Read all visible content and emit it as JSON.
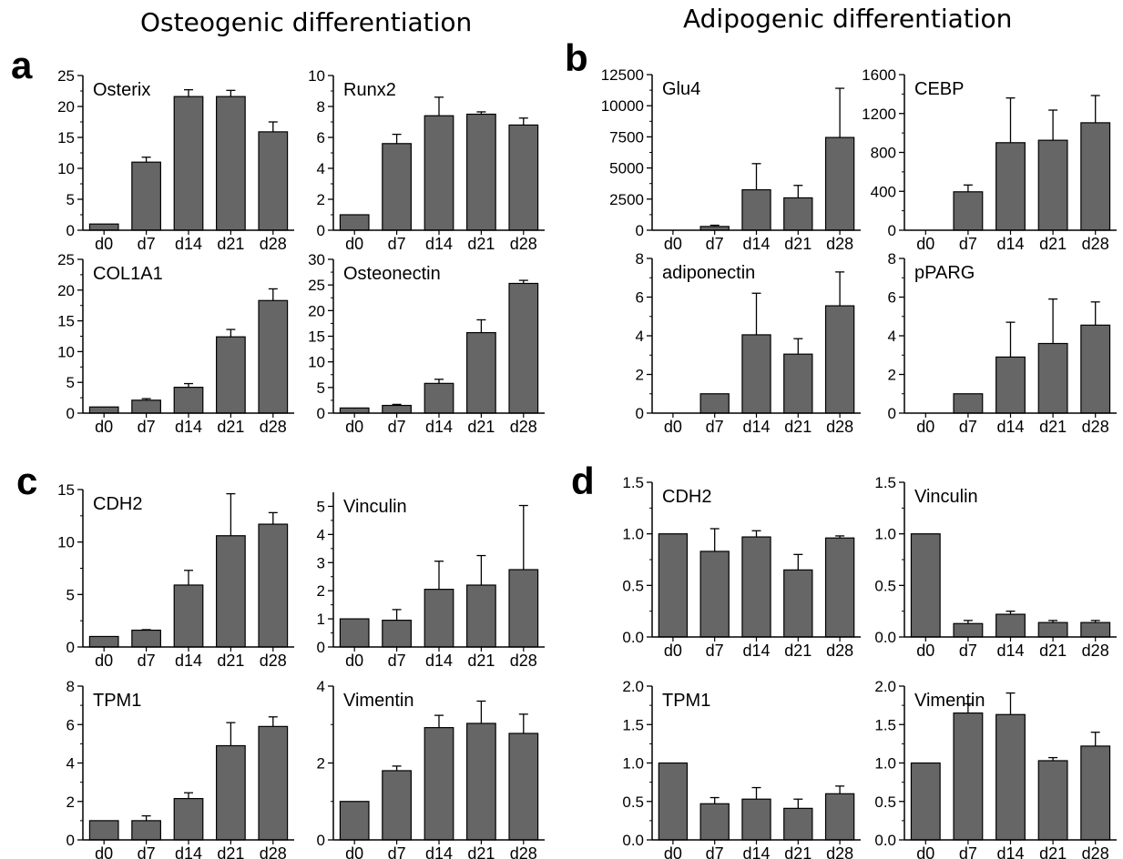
{
  "headings": {
    "osteogenic": "Osteogenic differentiation",
    "adipogenic": "Adipogenic differentiation"
  },
  "panel_labels": {
    "a": "a",
    "b": "b",
    "c": "c",
    "d": "d"
  },
  "colors": {
    "bar": "#666666",
    "axis": "#000000"
  },
  "chart_data": [
    {
      "type": "bar",
      "title": "Osterix",
      "categories": [
        "d0",
        "d7",
        "d14",
        "d21",
        "d28"
      ],
      "values": [
        1,
        11,
        21.6,
        21.6,
        15.9
      ],
      "errors": [
        0,
        0.8,
        1.1,
        1.0,
        1.6
      ],
      "ylim": [
        0,
        25
      ],
      "yticks": [
        0,
        5,
        10,
        15,
        20,
        25
      ],
      "yticklabels": [
        "0",
        "5",
        "10",
        "15",
        "20",
        "25"
      ]
    },
    {
      "type": "bar",
      "title": "Runx2",
      "categories": [
        "d0",
        "d7",
        "d14",
        "d21",
        "d28"
      ],
      "values": [
        1,
        5.6,
        7.4,
        7.5,
        6.8
      ],
      "errors": [
        0,
        0.6,
        1.2,
        0.15,
        0.45
      ],
      "ylim": [
        0,
        10
      ],
      "yticks": [
        0,
        2,
        4,
        6,
        8,
        10
      ],
      "yticklabels": [
        "0",
        "2",
        "4",
        "6",
        "8",
        "10"
      ]
    },
    {
      "type": "bar",
      "title": "COL1A1",
      "categories": [
        "d0",
        "d7",
        "d14",
        "d21",
        "d28"
      ],
      "values": [
        1,
        2.1,
        4.2,
        12.4,
        18.3
      ],
      "errors": [
        0,
        0.25,
        0.6,
        1.2,
        1.9
      ],
      "ylim": [
        0,
        25
      ],
      "yticks": [
        0,
        5,
        10,
        15,
        20,
        25
      ],
      "yticklabels": [
        "0",
        "5",
        "10",
        "15",
        "20",
        "25"
      ]
    },
    {
      "type": "bar",
      "title": "Osteonectin",
      "categories": [
        "d0",
        "d7",
        "d14",
        "d21",
        "d28"
      ],
      "values": [
        1,
        1.5,
        5.8,
        15.7,
        25.3
      ],
      "errors": [
        0,
        0.2,
        0.8,
        2.5,
        0.6
      ],
      "ylim": [
        0,
        30
      ],
      "yticks": [
        0,
        5,
        10,
        15,
        20,
        25,
        30
      ],
      "yticklabels": [
        "0",
        "5",
        "10",
        "15",
        "20",
        "25",
        "30"
      ]
    },
    {
      "type": "bar",
      "title": "Glu4",
      "categories": [
        "d0",
        "d7",
        "d14",
        "d21",
        "d28"
      ],
      "values": [
        0,
        300,
        3250,
        2600,
        7450
      ],
      "errors": [
        0,
        100,
        2100,
        1000,
        3950
      ],
      "ylim": [
        0,
        12500
      ],
      "yticks": [
        0,
        2500,
        5000,
        7500,
        10000,
        12500
      ],
      "yticklabels": [
        "0",
        "2500",
        "5000",
        "7500",
        "10000",
        "12500"
      ]
    },
    {
      "type": "bar",
      "title": "CEBP",
      "categories": [
        "d0",
        "d7",
        "d14",
        "d21",
        "d28"
      ],
      "values": [
        0,
        395,
        900,
        925,
        1105
      ],
      "errors": [
        0,
        70,
        460,
        310,
        280
      ],
      "ylim": [
        0,
        1600
      ],
      "yticks": [
        0,
        400,
        800,
        1200,
        1600
      ],
      "yticklabels": [
        "0",
        "400",
        "800",
        "1200",
        "1600"
      ]
    },
    {
      "type": "bar",
      "title": "adiponectin",
      "categories": [
        "d0",
        "d7",
        "d14",
        "d21",
        "d28"
      ],
      "values": [
        0,
        1,
        4.05,
        3.05,
        5.55
      ],
      "errors": [
        0,
        0,
        2.15,
        0.8,
        1.75
      ],
      "ylim": [
        0,
        8
      ],
      "yticks": [
        0,
        2,
        4,
        6,
        8
      ],
      "yticklabels": [
        "0",
        "2",
        "4",
        "6",
        "8"
      ]
    },
    {
      "type": "bar",
      "title": "pPARG",
      "categories": [
        "d0",
        "d7",
        "d14",
        "d21",
        "d28"
      ],
      "values": [
        0,
        1,
        2.9,
        3.6,
        4.55
      ],
      "errors": [
        0,
        0,
        1.8,
        2.3,
        1.2
      ],
      "ylim": [
        0,
        8
      ],
      "yticks": [
        0,
        2,
        4,
        6,
        8
      ],
      "yticklabels": [
        "0",
        "2",
        "4",
        "6",
        "8"
      ]
    },
    {
      "type": "bar",
      "title": "CDH2",
      "categories": [
        "d0",
        "d7",
        "d14",
        "d21",
        "d28"
      ],
      "values": [
        1,
        1.6,
        5.9,
        10.6,
        11.7
      ],
      "errors": [
        0,
        0.05,
        1.4,
        4.0,
        1.1
      ],
      "ylim": [
        0,
        15
      ],
      "yticks": [
        0,
        5,
        10,
        15
      ],
      "yticklabels": [
        "0",
        "5",
        "10",
        "15"
      ]
    },
    {
      "type": "bar",
      "title": "Vinculin",
      "categories": [
        "d0",
        "d7",
        "d14",
        "d21",
        "d28"
      ],
      "values": [
        1,
        0.95,
        2.05,
        2.2,
        2.75
      ],
      "errors": [
        0,
        0.38,
        1.0,
        1.05,
        2.28
      ],
      "ylim": [
        0,
        5.5
      ],
      "yticks": [
        0,
        1,
        2,
        3,
        4,
        5
      ],
      "yticklabels": [
        "0",
        "1",
        "2",
        "3",
        "4",
        "5"
      ]
    },
    {
      "type": "bar",
      "title": "TPM1",
      "categories": [
        "d0",
        "d7",
        "d14",
        "d21",
        "d28"
      ],
      "values": [
        1,
        1,
        2.15,
        4.9,
        5.9
      ],
      "errors": [
        0,
        0.25,
        0.3,
        1.2,
        0.5
      ],
      "ylim": [
        0,
        8
      ],
      "yticks": [
        0,
        2,
        4,
        6,
        8
      ],
      "yticklabels": [
        "0",
        "2",
        "4",
        "6",
        "8"
      ]
    },
    {
      "type": "bar",
      "title": "Vimentin",
      "categories": [
        "d0",
        "d7",
        "d14",
        "d21",
        "d28"
      ],
      "values": [
        1,
        1.8,
        2.92,
        3.03,
        2.77
      ],
      "errors": [
        0,
        0.12,
        0.32,
        0.58,
        0.5
      ],
      "ylim": [
        0,
        4
      ],
      "yticks": [
        0,
        2,
        4
      ],
      "yticklabels": [
        "0",
        "2",
        "4"
      ]
    },
    {
      "type": "bar",
      "title": "CDH2",
      "categories": [
        "d0",
        "d7",
        "d14",
        "d21",
        "d28"
      ],
      "values": [
        1,
        0.83,
        0.97,
        0.65,
        0.96
      ],
      "errors": [
        0,
        0.22,
        0.06,
        0.15,
        0.02
      ],
      "ylim": [
        0,
        1.5
      ],
      "yticks": [
        0,
        0.5,
        1,
        1.5
      ],
      "yticklabels": [
        "0.0",
        "0.5",
        "1.0",
        "1.5"
      ]
    },
    {
      "type": "bar",
      "title": "Vinculin",
      "categories": [
        "d0",
        "d7",
        "d14",
        "d21",
        "d28"
      ],
      "values": [
        1,
        0.13,
        0.22,
        0.14,
        0.14
      ],
      "errors": [
        0,
        0.03,
        0.03,
        0.02,
        0.02
      ],
      "ylim": [
        0,
        1.5
      ],
      "yticks": [
        0,
        0.5,
        1,
        1.5
      ],
      "yticklabels": [
        "0.0",
        "0.5",
        "1.0",
        "1.5"
      ]
    },
    {
      "type": "bar",
      "title": "TPM1",
      "categories": [
        "d0",
        "d7",
        "d14",
        "d21",
        "d28"
      ],
      "values": [
        1,
        0.47,
        0.53,
        0.41,
        0.6
      ],
      "errors": [
        0,
        0.08,
        0.15,
        0.12,
        0.1
      ],
      "ylim": [
        0,
        2
      ],
      "yticks": [
        0,
        0.5,
        1,
        1.5,
        2
      ],
      "yticklabels": [
        "0.0",
        "0.5",
        "1.0",
        "1.5",
        "2.0"
      ]
    },
    {
      "type": "bar",
      "title": "Vimentin",
      "categories": [
        "d0",
        "d7",
        "d14",
        "d21",
        "d28"
      ],
      "values": [
        1,
        1.65,
        1.63,
        1.03,
        1.22
      ],
      "errors": [
        0,
        0.12,
        0.28,
        0.04,
        0.18
      ],
      "ylim": [
        0,
        2
      ],
      "yticks": [
        0,
        0.5,
        1,
        1.5,
        2
      ],
      "yticklabels": [
        "0.0",
        "0.5",
        "1.0",
        "1.5",
        "2.0"
      ]
    }
  ]
}
